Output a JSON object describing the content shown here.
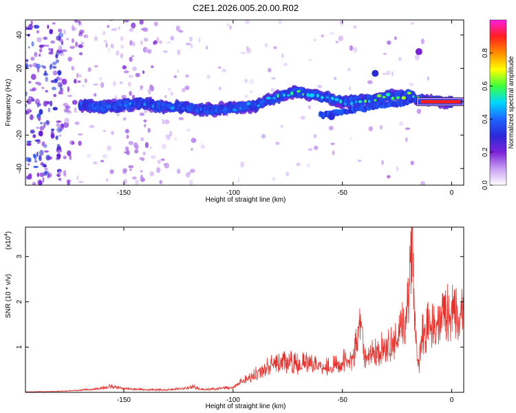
{
  "title": "C2E1.2026.005.20.00.R02",
  "colors": {
    "snr_line": "#e8302a",
    "colormap": [
      "#ffffff",
      "#c79ef2",
      "#7b22d8",
      "#2a2ad8",
      "#1e64ff",
      "#00d8ff",
      "#3cff3c",
      "#ffff00",
      "#ff8c00",
      "#ff1e1e",
      "#ff1ee0"
    ]
  },
  "chart_data": [
    {
      "type": "heatmap",
      "xlabel": "Height of straight line (km)",
      "ylabel": "Frequency (Hz)",
      "xlim": [
        -195,
        5.5
      ],
      "ylim": [
        -50,
        49
      ],
      "xticks": [
        -150,
        -100,
        -50,
        0
      ],
      "yticks": [
        40,
        20,
        0,
        -20,
        -40
      ],
      "colorbar": {
        "label": "Normalized spectral amplitude",
        "range": [
          0,
          1
        ],
        "ticks": [
          "0.0",
          "0.2",
          "0.4",
          "0.6",
          "0.8"
        ]
      },
      "signal_band": [
        {
          "x": -170,
          "y": -2,
          "amp": 0.35
        },
        {
          "x": -160,
          "y": -3,
          "amp": 0.38
        },
        {
          "x": -150,
          "y": -2,
          "amp": 0.42
        },
        {
          "x": -140,
          "y": -1,
          "amp": 0.38
        },
        {
          "x": -130,
          "y": -3,
          "amp": 0.4
        },
        {
          "x": -120,
          "y": -4,
          "amp": 0.36
        },
        {
          "x": -110,
          "y": -5,
          "amp": 0.38
        },
        {
          "x": -100,
          "y": -4,
          "amp": 0.4
        },
        {
          "x": -90,
          "y": -2,
          "amp": 0.45
        },
        {
          "x": -80,
          "y": 3,
          "amp": 0.5
        },
        {
          "x": -70,
          "y": 6,
          "amp": 0.55
        },
        {
          "x": -60,
          "y": 3,
          "amp": 0.5
        },
        {
          "x": -50,
          "y": 0,
          "amp": 0.5
        },
        {
          "x": -40,
          "y": 1,
          "amp": 0.55
        },
        {
          "x": -30,
          "y": 3,
          "amp": 0.6
        },
        {
          "x": -20,
          "y": 4,
          "amp": 0.6
        },
        {
          "x": -12,
          "y": 0,
          "amp": 0.98
        },
        {
          "x": 0,
          "y": 0,
          "amp": 0.98
        }
      ],
      "isolated_blobs": [
        {
          "x": -15,
          "y": 30,
          "amp": 0.2
        },
        {
          "x": -35,
          "y": 17,
          "amp": 0.3
        },
        {
          "x": -55,
          "y": -9,
          "amp": 0.3
        }
      ]
    },
    {
      "type": "line",
      "xlabel": "Height of straight line (km)",
      "ylabel": "SNR (10 * v/v)",
      "multiplier_label": "(x10",
      "multiplier_exp": "4",
      "xlim": [
        -195,
        5.5
      ],
      "ylim": [
        0,
        3.65
      ],
      "xticks": [
        -150,
        -100,
        -50,
        0
      ],
      "yticks": [
        1,
        2,
        3
      ],
      "series": [
        {
          "x": [
            -195,
            -180,
            -170,
            -160,
            -157,
            -150,
            -140,
            -130,
            -122,
            -118,
            -115,
            -110,
            -100,
            -95,
            -90,
            -85,
            -80,
            -75,
            -70,
            -65,
            -60,
            -55,
            -50,
            -45,
            -41,
            -40,
            -38,
            -35,
            -30,
            -25,
            -22,
            -20,
            -18,
            -17,
            -16,
            -15,
            -14,
            -12,
            -10,
            -8,
            -5,
            -3,
            0,
            3,
            5.5
          ],
          "y": [
            0.01,
            0.02,
            0.04,
            0.08,
            0.12,
            0.08,
            0.05,
            0.05,
            0.08,
            0.12,
            0.06,
            0.06,
            0.1,
            0.25,
            0.35,
            0.5,
            0.55,
            0.6,
            0.55,
            0.6,
            0.55,
            0.5,
            0.6,
            0.65,
            1.45,
            0.6,
            0.7,
            0.8,
            0.9,
            1.0,
            1.35,
            1.7,
            3.65,
            1.6,
            0.9,
            0.5,
            1.1,
            1.25,
            1.35,
            1.2,
            1.45,
            1.55,
            1.5,
            1.6,
            1.6
          ]
        }
      ]
    }
  ]
}
